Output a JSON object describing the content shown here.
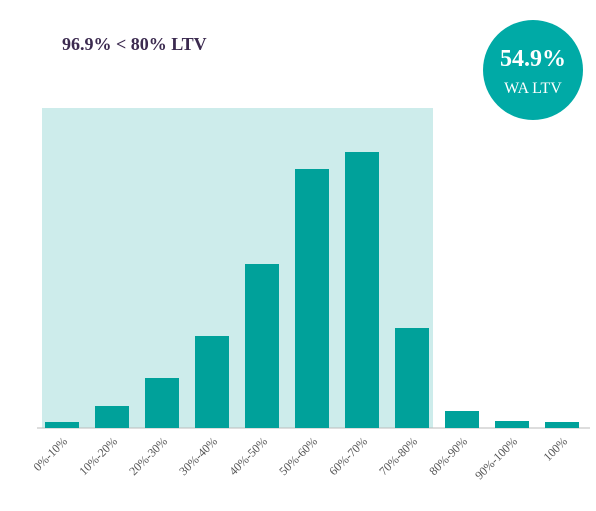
{
  "chart_data": {
    "type": "bar",
    "title": "96.9% < 80% LTV",
    "badge": {
      "value": "54.9%",
      "label": "WA LTV"
    },
    "categories": [
      "0%-10%",
      "10%-20%",
      "20%-30%",
      "30%-40%",
      "40%-50%",
      "50%-60%",
      "60%-70%",
      "70%-80%",
      "80%-90%",
      "90%-100%",
      "100%"
    ],
    "values": [
      0.6,
      2.2,
      5.0,
      9.2,
      16.4,
      25.9,
      27.6,
      10.0,
      1.7,
      0.7,
      0.6
    ],
    "color": "#00a19a",
    "ylim": [
      0,
      32
    ]
  }
}
